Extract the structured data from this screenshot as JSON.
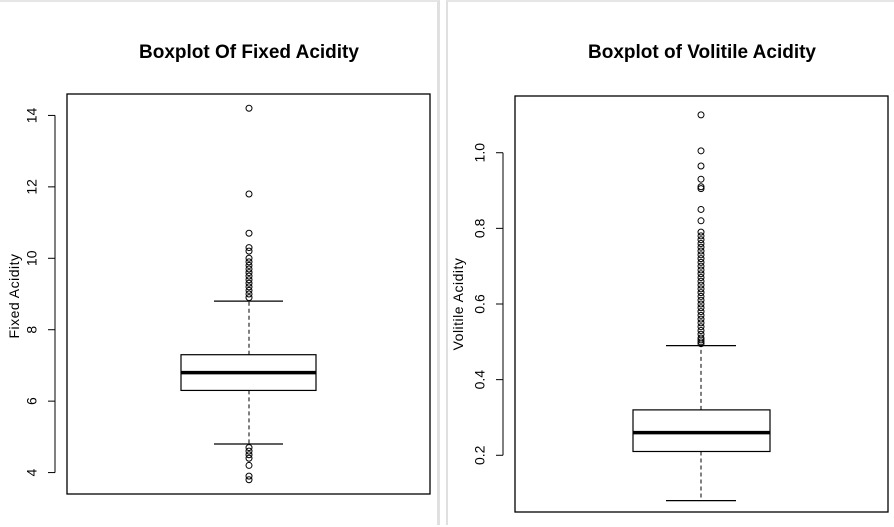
{
  "chart_data": [
    {
      "type": "boxplot",
      "title": "Boxplot Of Fixed Acidity",
      "ylabel": "Fixed Acidity",
      "xlabel": "",
      "ylim": [
        3.4,
        14.6
      ],
      "yticks": [
        4,
        6,
        8,
        10,
        12,
        14
      ],
      "ytick_labels": [
        "4",
        "6",
        "8",
        "10",
        "12",
        "14"
      ],
      "stats": {
        "whisker_low": 4.8,
        "q1": 6.3,
        "median": 6.8,
        "q3": 7.3,
        "whisker_high": 8.8
      },
      "outliers": [
        3.8,
        3.9,
        4.2,
        4.4,
        4.5,
        4.6,
        4.7,
        8.9,
        9.0,
        9.1,
        9.2,
        9.3,
        9.4,
        9.5,
        9.6,
        9.7,
        9.8,
        9.9,
        10.0,
        10.2,
        10.3,
        10.7,
        11.8,
        14.2
      ],
      "color": "#000000"
    },
    {
      "type": "boxplot",
      "title": "Boxplot of Volitile Acidity",
      "ylabel": "Volitile Acidity",
      "xlabel": "",
      "ylim": [
        0.05,
        1.15
      ],
      "yticks": [
        0.2,
        0.4,
        0.6,
        0.8,
        1.0
      ],
      "ytick_labels": [
        "0.2",
        "0.4",
        "0.6",
        "0.8",
        "1.0"
      ],
      "stats": {
        "whisker_low": 0.08,
        "q1": 0.21,
        "median": 0.26,
        "q3": 0.32,
        "whisker_high": 0.49
      },
      "outliers": [
        0.495,
        0.5,
        0.505,
        0.51,
        0.52,
        0.53,
        0.54,
        0.55,
        0.56,
        0.57,
        0.58,
        0.59,
        0.6,
        0.61,
        0.62,
        0.63,
        0.64,
        0.65,
        0.66,
        0.67,
        0.68,
        0.69,
        0.7,
        0.71,
        0.72,
        0.73,
        0.74,
        0.75,
        0.76,
        0.77,
        0.78,
        0.79,
        0.82,
        0.85,
        0.905,
        0.91,
        0.93,
        0.965,
        1.005,
        1.1
      ],
      "color": "#000000"
    }
  ]
}
